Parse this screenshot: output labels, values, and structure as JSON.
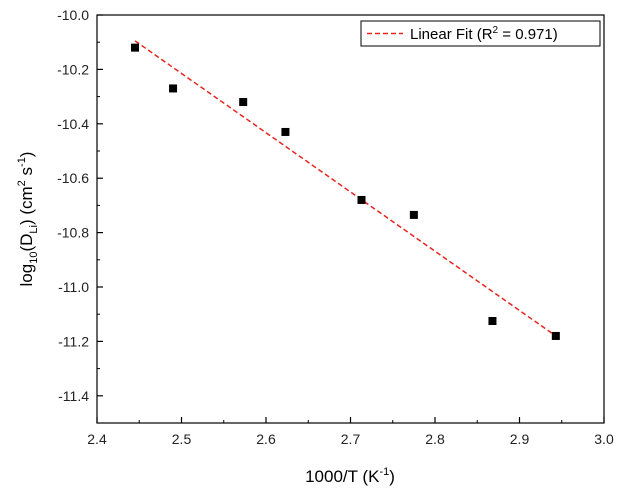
{
  "chart_data": {
    "type": "scatter",
    "title": "",
    "xlabel": {
      "base": "1000/T (K",
      "sup": "-1",
      "tail": ")"
    },
    "ylabel": {
      "p1": "log",
      "sub1": "10",
      "p2": "(D",
      "sub2": "Li",
      "p3": ") (cm",
      "sup1": "2",
      "p4": " s",
      "sup2": "-1",
      "p5": ")"
    },
    "xlim": [
      2.4,
      3.0
    ],
    "ylim": [
      -11.5,
      -10.0
    ],
    "xticks": [
      "2.4",
      "2.5",
      "2.6",
      "2.7",
      "2.8",
      "2.9",
      "3.0"
    ],
    "yticks": [
      "-10.0",
      "-10.2",
      "-10.4",
      "-10.6",
      "-10.8",
      "-11.0",
      "-11.2",
      "-11.4"
    ],
    "points": [
      {
        "x": 2.445,
        "y": -10.12
      },
      {
        "x": 2.49,
        "y": -10.27
      },
      {
        "x": 2.573,
        "y": -10.32
      },
      {
        "x": 2.623,
        "y": -10.43
      },
      {
        "x": 2.713,
        "y": -10.68
      },
      {
        "x": 2.775,
        "y": -10.735
      },
      {
        "x": 2.868,
        "y": -11.125
      },
      {
        "x": 2.943,
        "y": -11.18
      }
    ],
    "fit_line": {
      "name": {
        "base": "Linear Fit (R",
        "sup": "2",
        "tail": " = 0.971)"
      },
      "x": [
        2.445,
        2.943
      ],
      "y": [
        -10.095,
        -11.18
      ],
      "color": "#e8251f",
      "style": "dashed"
    },
    "marker": {
      "shape": "square",
      "color": "#000000"
    },
    "legend_position": "top-right",
    "grid": false
  }
}
